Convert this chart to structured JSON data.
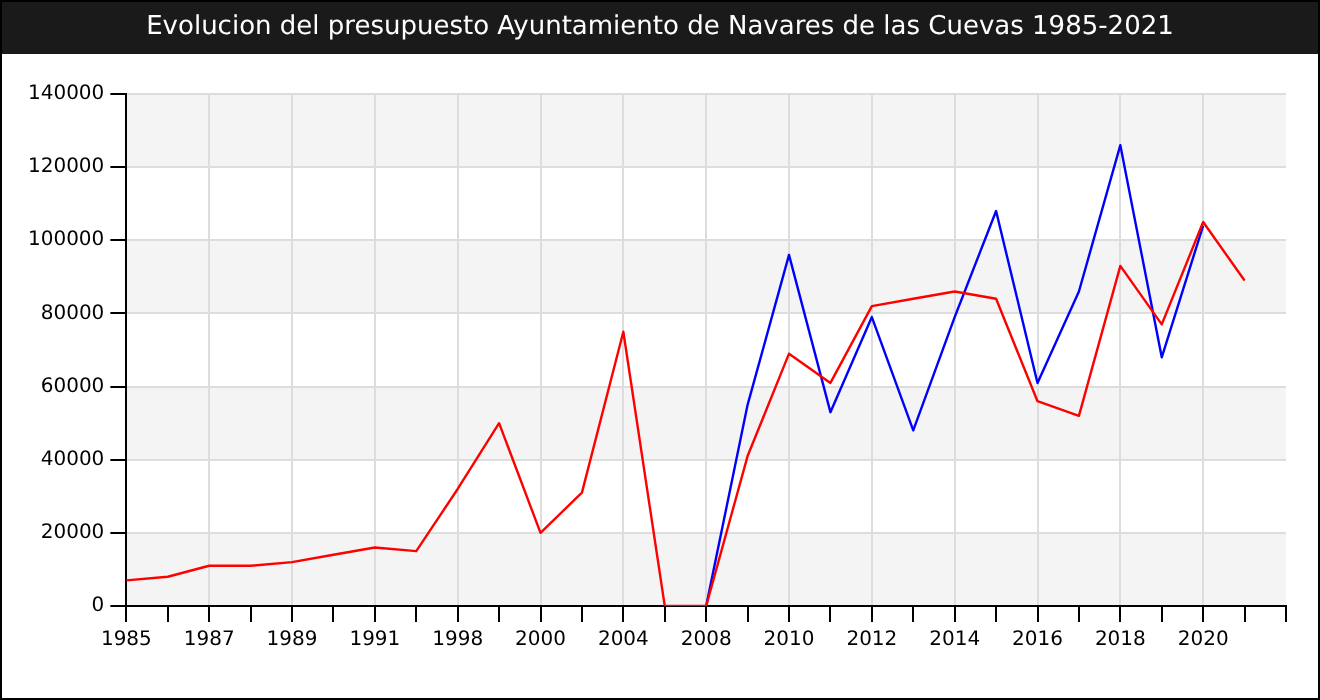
{
  "chart_data": {
    "type": "line",
    "title": "Evolucion del presupuesto Ayuntamiento de Navares de las Cuevas 1985-2021",
    "categories": [
      "1985",
      null,
      "1987",
      null,
      "1989",
      null,
      "1991",
      null,
      "1998",
      null,
      "2000",
      null,
      "2004",
      null,
      "2008",
      null,
      "2010",
      null,
      "2012",
      null,
      "2014",
      null,
      "2016",
      null,
      "2018",
      null,
      "2020",
      null,
      null
    ],
    "series": [
      {
        "color": "#ff0000",
        "values": [
          7000,
          8000,
          11000,
          11000,
          12000,
          14000,
          16000,
          15000,
          32000,
          50000,
          20000,
          31000,
          75000,
          0,
          0,
          41000,
          69000,
          61000,
          82000,
          84000,
          86000,
          84000,
          56000,
          52000,
          93000,
          77000,
          105000,
          89000,
          null
        ]
      },
      {
        "color": "#0000ff",
        "values": [
          null,
          null,
          null,
          null,
          null,
          null,
          null,
          null,
          null,
          null,
          null,
          null,
          null,
          null,
          0,
          55000,
          96000,
          53000,
          79000,
          48000,
          79000,
          108000,
          61000,
          86000,
          126000,
          68000,
          104000,
          null,
          null
        ]
      }
    ],
    "ylim": [
      0,
      140000
    ],
    "yticks": [
      0,
      20000,
      40000,
      60000,
      80000,
      100000,
      120000,
      140000
    ],
    "grid": true,
    "legend": false,
    "marker": "none",
    "line_style": "solid"
  }
}
